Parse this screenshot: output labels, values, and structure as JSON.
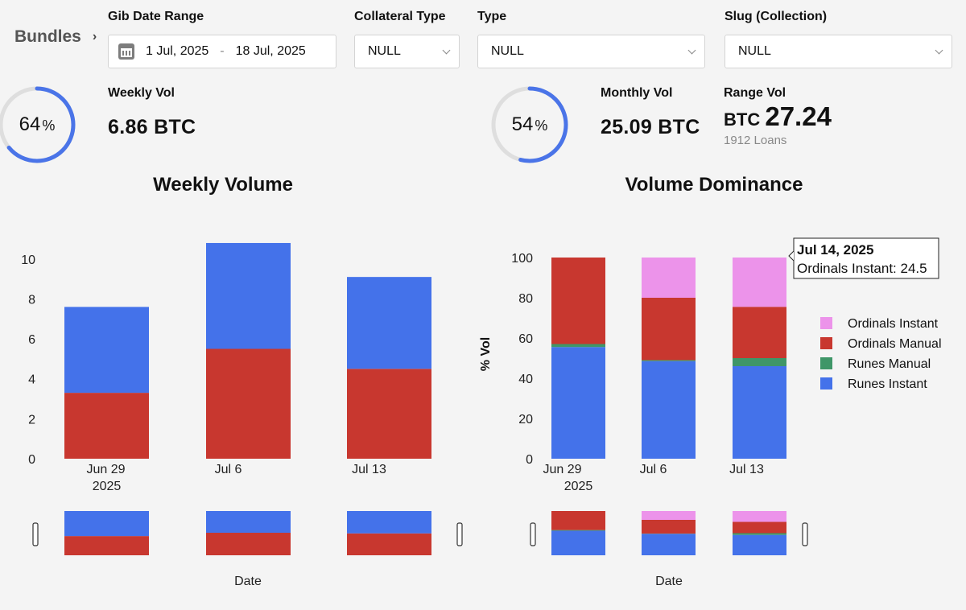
{
  "breadcrumb": {
    "label": "Bundles"
  },
  "filters": {
    "date_range": {
      "label": "Gib Date Range",
      "start": "1 Jul, 2025",
      "end": "18 Jul, 2025",
      "separator": "-"
    },
    "collateral_type": {
      "label": "Collateral Type",
      "value": "NULL"
    },
    "type": {
      "label": "Type",
      "value": "NULL"
    },
    "slug": {
      "label": "Slug (Collection)",
      "value": "NULL"
    }
  },
  "kpis": {
    "weekly": {
      "ring_value": "64",
      "ring_unit": "%",
      "ring_fraction": 0.64,
      "label": "Weekly Vol",
      "value": "6.86 BTC"
    },
    "monthly": {
      "ring_value": "54",
      "ring_unit": "%",
      "ring_fraction": 0.54,
      "label": "Monthly Vol",
      "value": "25.09 BTC"
    },
    "range": {
      "label": "Range Vol",
      "prefix": "BTC",
      "value": "27.24",
      "sub": "1912 Loans"
    }
  },
  "colors": {
    "ring_track": "#dedede",
    "ring_fill": "#4a74e8",
    "runes_instant": "#4472ea",
    "runes_manual": "#3f9668",
    "ordinals_manual": "#c8372f",
    "ordinals_instant": "#ec93ea"
  },
  "chart_data": [
    {
      "type": "bar",
      "stacked": true,
      "title": "Weekly Volume",
      "xlabel": "Date",
      "ylabel": "",
      "ylim": [
        0,
        11
      ],
      "yticks": [
        0,
        2,
        4,
        6,
        8,
        10
      ],
      "categories": [
        "Jun 29 2025",
        "Jul 6",
        "Jul 13"
      ],
      "x_tick_lines": [
        [
          "Jun 29",
          "2025"
        ],
        [
          "Jul 6"
        ],
        [
          "Jul 13"
        ]
      ],
      "series": [
        {
          "key": "ordinals_manual",
          "values": [
            3.3,
            5.5,
            4.5
          ]
        },
        {
          "key": "runes_instant",
          "values": [
            4.3,
            5.3,
            4.6
          ]
        }
      ]
    },
    {
      "type": "bar",
      "stacked": true,
      "title": "Volume Dominance",
      "xlabel": "Date",
      "ylabel": "% Vol",
      "ylim": [
        0,
        100
      ],
      "yticks": [
        0,
        20,
        40,
        60,
        80,
        100
      ],
      "categories": [
        "Jun 29 2025",
        "Jul 6",
        "Jul 13"
      ],
      "x_tick_lines": [
        [
          "Jun 29",
          "2025"
        ],
        [
          "Jul 6"
        ],
        [
          "Jul 13"
        ]
      ],
      "legend": {
        "position": "right",
        "items": [
          "Ordinals Instant",
          "Ordinals Manual",
          "Runes Manual",
          "Runes Instant"
        ]
      },
      "series": [
        {
          "name": "Runes Instant",
          "key": "runes_instant",
          "values": [
            55.5,
            48.5,
            46
          ]
        },
        {
          "name": "Runes Manual",
          "key": "runes_manual",
          "values": [
            1.5,
            0.5,
            4
          ]
        },
        {
          "name": "Ordinals Manual",
          "key": "ordinals_manual",
          "values": [
            43,
            31,
            25.5
          ]
        },
        {
          "name": "Ordinals Instant",
          "key": "ordinals_instant",
          "values": [
            0,
            20,
            24.5
          ]
        }
      ],
      "tooltip": {
        "title": "Jul 14, 2025",
        "text": "Ordinals Instant: 24.5"
      }
    }
  ]
}
